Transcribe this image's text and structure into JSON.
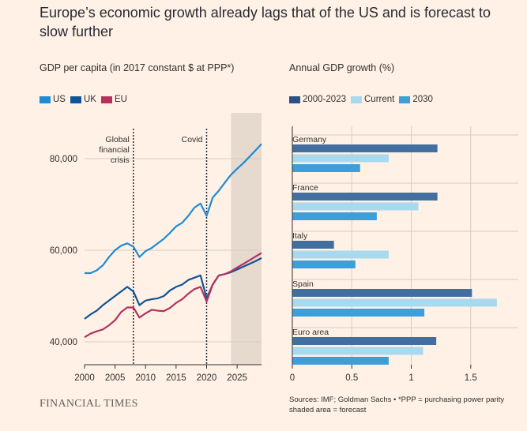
{
  "title": "Europe’s economic growth already lags that of the US and is forecast to slow further",
  "brand": "FINANCIAL TIMES",
  "source_line1": "Sources: IMF; Goldman Sachs • *PPP = purchasing power parity",
  "source_line2": "shaded area = forecast",
  "chart_data": [
    {
      "type": "line",
      "title": "GDP per capita (in 2017 constant $ at PPP*)",
      "xlim": [
        2000,
        2029
      ],
      "ylim": [
        35000,
        90000
      ],
      "x_ticks": [
        2000,
        2005,
        2010,
        2015,
        2020,
        2025
      ],
      "x_tick_labels": [
        "2000",
        "2005",
        "2010",
        "2015",
        "2020",
        "2025"
      ],
      "y_ticks": [
        40000,
        60000,
        80000
      ],
      "y_tick_labels": [
        "40,000",
        "60,000",
        "80,000"
      ],
      "forecast_shade": [
        2024,
        2029
      ],
      "annotations": [
        {
          "x": 2008,
          "label_lines": [
            "Global",
            "financial",
            "crisis"
          ]
        },
        {
          "x": 2020,
          "label_lines": [
            "Covid"
          ]
        }
      ],
      "legend": [
        "US",
        "UK",
        "EU"
      ],
      "series": [
        {
          "name": "US",
          "color": "#1e8bd3",
          "x": [
            2000,
            2001,
            2002,
            2003,
            2004,
            2005,
            2006,
            2007,
            2008,
            2009,
            2010,
            2011,
            2012,
            2013,
            2014,
            2015,
            2016,
            2017,
            2018,
            2019,
            2020,
            2021,
            2022,
            2023,
            2024,
            2025,
            2026,
            2027,
            2028,
            2029
          ],
          "y": [
            55000,
            55000,
            55600,
            56700,
            58500,
            60000,
            61000,
            61500,
            60800,
            58500,
            59800,
            60500,
            61500,
            62500,
            63800,
            65200,
            66000,
            67500,
            69300,
            70200,
            67500,
            71500,
            73000,
            74800,
            76500,
            77800,
            79000,
            80400,
            81800,
            83200
          ]
        },
        {
          "name": "UK",
          "color": "#0f5499",
          "x": [
            2000,
            2001,
            2002,
            2003,
            2004,
            2005,
            2006,
            2007,
            2008,
            2009,
            2010,
            2011,
            2012,
            2013,
            2014,
            2015,
            2016,
            2017,
            2018,
            2019,
            2020,
            2021,
            2022,
            2023,
            2024,
            2025,
            2026,
            2027,
            2028,
            2029
          ],
          "y": [
            45000,
            46000,
            46800,
            48000,
            49000,
            50000,
            51000,
            52000,
            51000,
            48000,
            49000,
            49300,
            49500,
            50000,
            51200,
            52000,
            52500,
            53500,
            54000,
            54500,
            49500,
            52500,
            54500,
            54800,
            55200,
            55800,
            56400,
            57000,
            57600,
            58300
          ]
        },
        {
          "name": "EU",
          "color": "#b5325e",
          "x": [
            2000,
            2001,
            2002,
            2003,
            2004,
            2005,
            2006,
            2007,
            2008,
            2009,
            2010,
            2011,
            2012,
            2013,
            2014,
            2015,
            2016,
            2017,
            2018,
            2019,
            2020,
            2021,
            2022,
            2023,
            2024,
            2025,
            2026,
            2027,
            2028,
            2029
          ],
          "y": [
            41000,
            41800,
            42300,
            42700,
            43600,
            44700,
            46500,
            47500,
            47500,
            45300,
            46200,
            47000,
            46800,
            46700,
            47400,
            48500,
            49300,
            50500,
            51500,
            52000,
            48800,
            52500,
            54500,
            54800,
            55400,
            56200,
            57000,
            57800,
            58600,
            59400
          ]
        }
      ]
    },
    {
      "type": "bar",
      "orientation": "horizontal",
      "title": "Annual GDP growth (%)",
      "categories": [
        "Germany",
        "France",
        "Italy",
        "Spain",
        "Euro area"
      ],
      "xlim": [
        0,
        1.9
      ],
      "x_ticks": [
        0,
        0.5,
        1,
        1.5
      ],
      "x_tick_labels": [
        "0",
        "0.5",
        "1",
        "1.5"
      ],
      "legend": [
        "2000-2023",
        "Current",
        "2030"
      ],
      "series": [
        {
          "name": "2000-2023",
          "color": "#426fa0",
          "values": [
            1.22,
            1.22,
            0.35,
            1.51,
            1.21
          ]
        },
        {
          "name": "Current",
          "color": "#a9d9ef",
          "values": [
            0.81,
            1.06,
            0.81,
            1.72,
            1.1
          ]
        },
        {
          "name": "2030",
          "color": "#3c9fd9",
          "values": [
            0.57,
            0.71,
            0.53,
            1.11,
            0.81
          ]
        }
      ]
    }
  ]
}
